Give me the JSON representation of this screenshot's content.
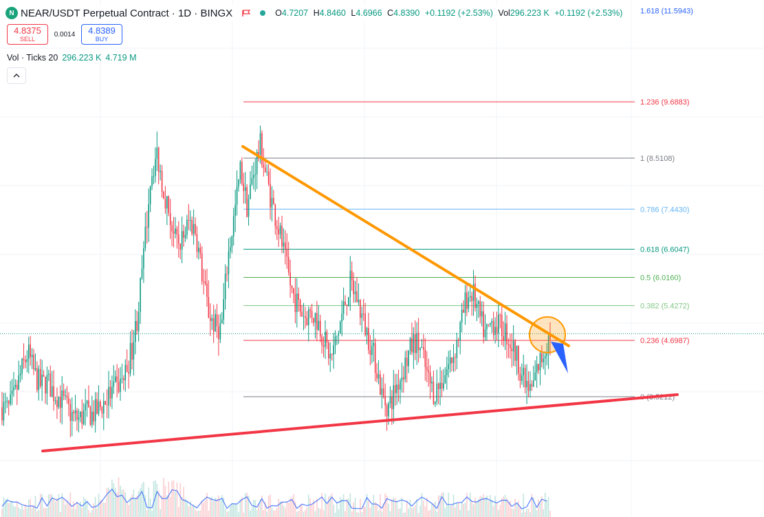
{
  "header": {
    "logo_text": "N",
    "title": "NEAR/USDT Perpetual Contract · 1D · BINGX",
    "open_label": "O",
    "open": "4.7207",
    "high_label": "H",
    "high": "4.8460",
    "low_label": "L",
    "low": "4.6966",
    "close_label": "C",
    "close": "4.8390",
    "change": "+0.1192 (+2.53%)",
    "vol_label": "Vol",
    "vol": "296.223 K",
    "vol_change": "+0.1192 (+2.53%)"
  },
  "trade": {
    "sell_price": "4.8375",
    "sell_label": "SELL",
    "spread": "0.0014",
    "buy_price": "4.8389",
    "buy_label": "BUY"
  },
  "volume_indicator": {
    "label": "Vol · Ticks 20",
    "value1": "296.223 K",
    "value2": "4.719 M"
  },
  "collapse_icon": "chevron-up-icon",
  "colors": {
    "up": "#089981",
    "down": "#f23645",
    "trendline_down": "#ff9800",
    "trendline_up": "#f23645",
    "arrow": "#2962ff"
  },
  "chart_data": {
    "type": "candlestick",
    "symbol": "NEAR/USDT",
    "interval": "1D",
    "last_price": 4.839,
    "fibonacci": {
      "levels": [
        {
          "ratio": "1.618",
          "price": "11.5943",
          "color": "#2962ff"
        },
        {
          "ratio": "1.236",
          "price": "9.6883",
          "color": "#f23645"
        },
        {
          "ratio": "1",
          "price": "8.5108",
          "color": "#787b86"
        },
        {
          "ratio": "0.786",
          "price": "7.4430",
          "color": "#64b5f6"
        },
        {
          "ratio": "0.618",
          "price": "6.6047",
          "color": "#089981"
        },
        {
          "ratio": "0.5",
          "price": "6.0160",
          "color": "#4caf50"
        },
        {
          "ratio": "0.382",
          "price": "5.4272",
          "color": "#81c784"
        },
        {
          "ratio": "0.236",
          "price": "4.6987",
          "color": "#f23645"
        },
        {
          "ratio": "0",
          "price": "3.5212",
          "color": "#787b86"
        }
      ]
    },
    "price_path": [
      3.3,
      3.25,
      3.55,
      4.05,
      4.45,
      4.0,
      3.75,
      3.85,
      3.6,
      3.5,
      3.3,
      3.1,
      3.05,
      3.2,
      3.15,
      3.25,
      3.45,
      3.6,
      3.75,
      3.95,
      4.45,
      5.2,
      6.5,
      8.1,
      8.6,
      7.9,
      7.3,
      6.7,
      6.8,
      7.2,
      7.0,
      6.1,
      5.3,
      5.0,
      4.95,
      6.4,
      7.3,
      8.3,
      7.5,
      8.2,
      8.8,
      8.1,
      7.5,
      7.0,
      6.3,
      5.7,
      5.4,
      5.2,
      5.3,
      5.1,
      4.7,
      4.3,
      4.8,
      5.4,
      5.9,
      5.6,
      5.1,
      4.7,
      4.2,
      3.5,
      3.3,
      3.7,
      4.0,
      4.4,
      4.7,
      4.5,
      3.9,
      3.6,
      3.8,
      4.1,
      4.4,
      4.9,
      5.6,
      5.7,
      5.2,
      4.8,
      5.1,
      5.0,
      4.9,
      4.6,
      4.3,
      3.8,
      3.6,
      4.1,
      4.45,
      4.84
    ]
  }
}
